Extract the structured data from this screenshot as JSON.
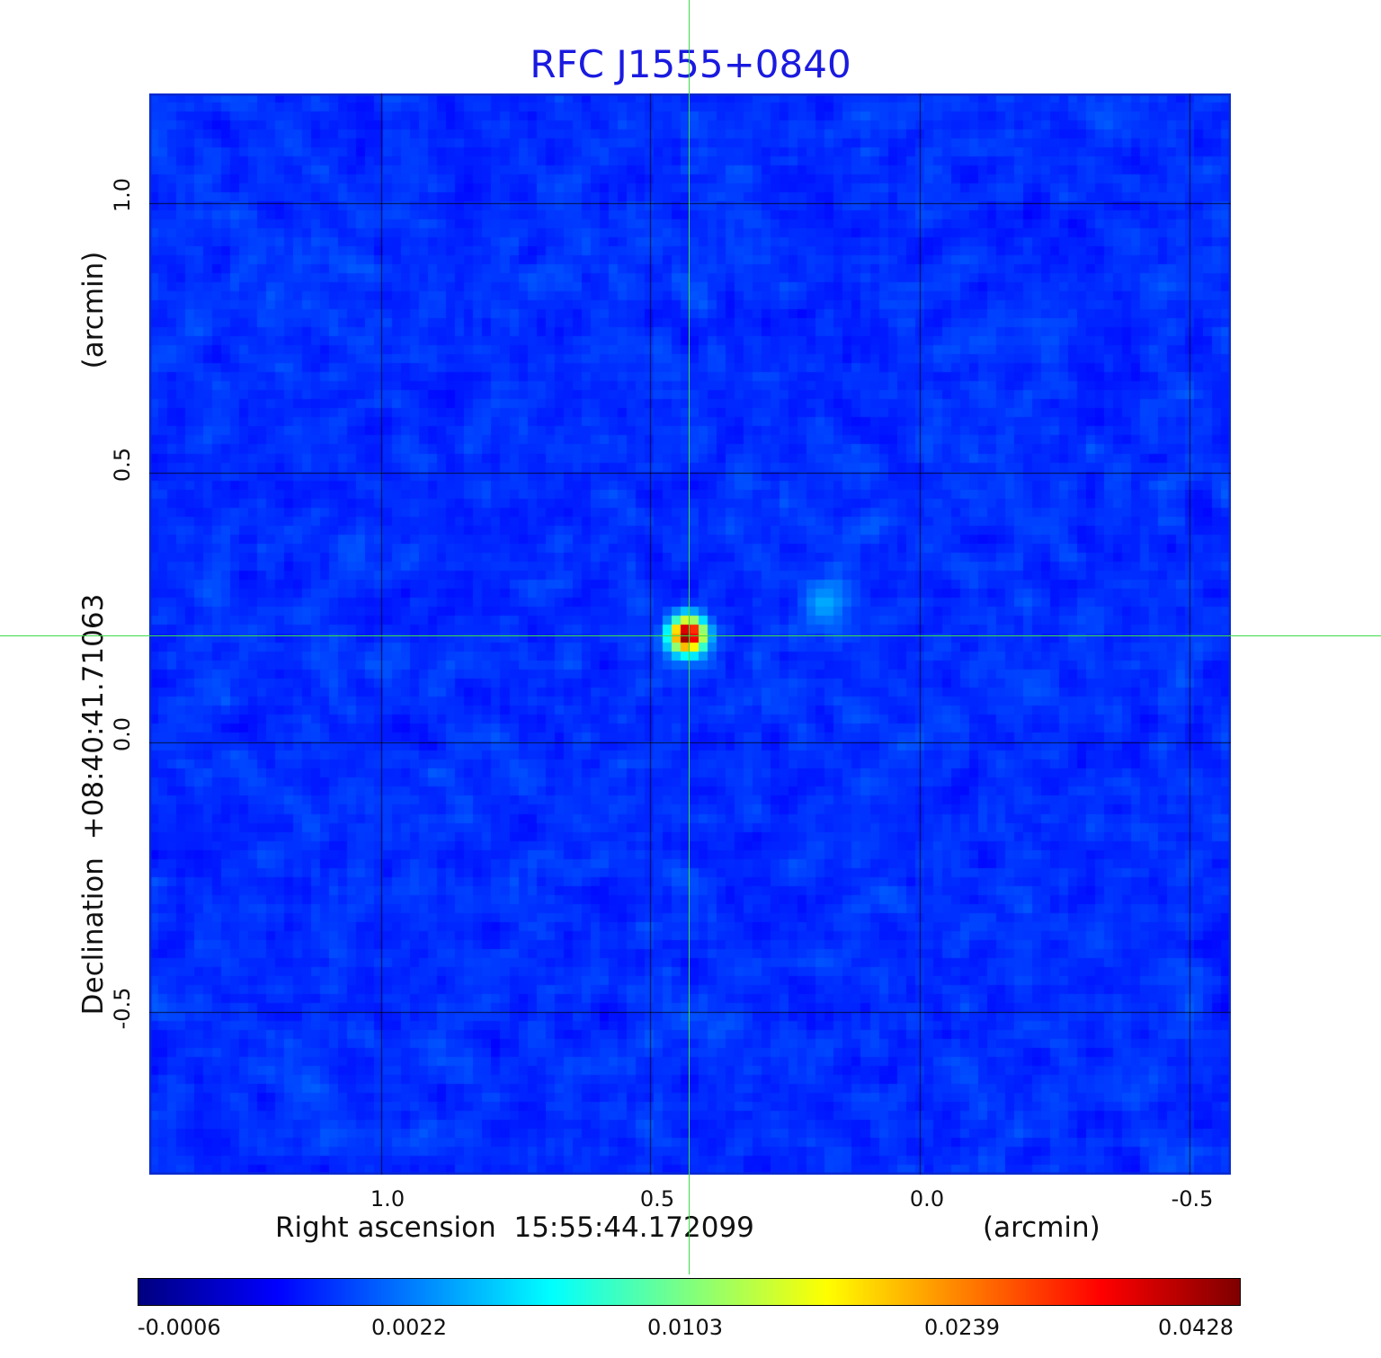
{
  "title": "RFC J1555+0840",
  "x_axis": {
    "label": "Right ascension  15:55:44.172099",
    "unit": "(arcmin)",
    "ticks": [
      "1.0",
      "0.5",
      "0.0",
      "-0.5"
    ]
  },
  "y_axis": {
    "label": "Declination  +08:40:41.71063",
    "unit": "(arcmin)",
    "ticks": [
      "1.0",
      "0.5",
      "0.0",
      "-0.5"
    ]
  },
  "colorbar": {
    "ticks": [
      "-0.0006",
      "0.0022",
      "0.0103",
      "0.0239",
      "0.0428"
    ],
    "colormap": "jet"
  },
  "colors": {
    "title": "#1a1ae0",
    "crosshair": "#3ddc4a",
    "background_field": "#1f4cf0"
  }
}
